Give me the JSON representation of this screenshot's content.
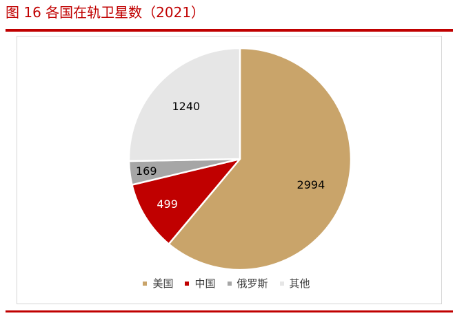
{
  "title": "图 16 各国在轨卫星数（2021）",
  "chart_data": {
    "type": "pie",
    "title": "",
    "categories": [
      "美国",
      "中国",
      "俄罗斯",
      "其他"
    ],
    "values": [
      2994,
      499,
      169,
      1240
    ],
    "colors": [
      "#c9a46a",
      "#c00000",
      "#a6a6a6",
      "#e6e6e6"
    ],
    "legend": "bottom"
  }
}
